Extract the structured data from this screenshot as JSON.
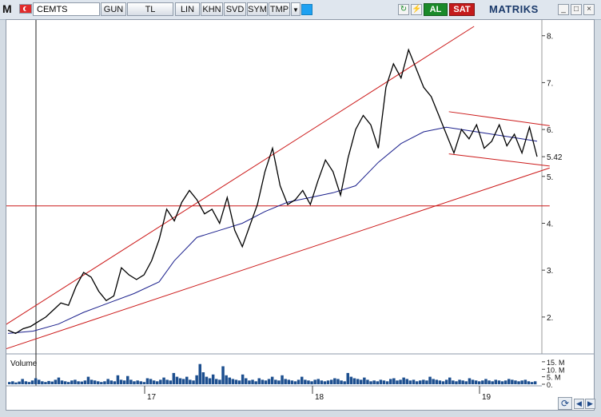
{
  "toolbar": {
    "logo": "M",
    "symbol": "CEMTS",
    "period": "GUN",
    "currency": "TL",
    "scale": "LIN",
    "buttons": [
      "KHN",
      "SVD",
      "SYM",
      "TMP"
    ],
    "buy_label": "AL",
    "sell_label": "SAT",
    "brand": "MATRIKS",
    "colors": {
      "buy": "#1a8a2a",
      "sell": "#c41b1b",
      "twitter": "#1da1f2"
    }
  },
  "chart_data": [
    {
      "type": "line",
      "title": "",
      "ylabel": "",
      "ylim": [
        1.35,
        8.2
      ],
      "yticks": [
        "8.",
        "7.",
        "6.",
        "5.",
        "4.",
        "3.",
        "2."
      ],
      "ytick_values": [
        8,
        7,
        6,
        5,
        4,
        3,
        2
      ],
      "xticks": [
        "17",
        "18",
        "19"
      ],
      "last_price_label": "5.42",
      "last_price": 5.42,
      "series": [
        {
          "values": [
            [
              0,
              1.72
            ],
            [
              3,
              1.65
            ],
            [
              6,
              1.75
            ],
            [
              9,
              1.8
            ],
            [
              12,
              1.9
            ],
            [
              15,
              2.0
            ],
            [
              18,
              2.15
            ],
            [
              21,
              2.3
            ],
            [
              24,
              2.25
            ],
            [
              27,
              2.65
            ],
            [
              30,
              2.95
            ],
            [
              33,
              2.85
            ],
            [
              36,
              2.55
            ],
            [
              39,
              2.35
            ],
            [
              42,
              2.45
            ],
            [
              45,
              3.05
            ],
            [
              48,
              2.9
            ],
            [
              51,
              2.8
            ],
            [
              54,
              2.9
            ],
            [
              57,
              3.2
            ],
            [
              60,
              3.65
            ],
            [
              63,
              4.3
            ],
            [
              66,
              4.05
            ],
            [
              69,
              4.45
            ],
            [
              72,
              4.7
            ],
            [
              75,
              4.5
            ],
            [
              78,
              4.2
            ],
            [
              81,
              4.3
            ],
            [
              84,
              4.0
            ],
            [
              87,
              4.55
            ],
            [
              90,
              3.85
            ],
            [
              93,
              3.5
            ],
            [
              96,
              3.95
            ],
            [
              99,
              4.4
            ],
            [
              102,
              5.1
            ],
            [
              105,
              5.6
            ],
            [
              108,
              4.8
            ],
            [
              111,
              4.4
            ],
            [
              114,
              4.5
            ],
            [
              117,
              4.7
            ],
            [
              120,
              4.4
            ],
            [
              123,
              4.9
            ],
            [
              126,
              5.35
            ],
            [
              129,
              5.1
            ],
            [
              132,
              4.6
            ],
            [
              135,
              5.4
            ],
            [
              138,
              6.0
            ],
            [
              141,
              6.3
            ],
            [
              144,
              6.1
            ],
            [
              147,
              5.6
            ],
            [
              150,
              6.9
            ],
            [
              153,
              7.4
            ],
            [
              156,
              7.1
            ],
            [
              159,
              7.7
            ],
            [
              162,
              7.3
            ],
            [
              165,
              6.9
            ],
            [
              168,
              6.7
            ],
            [
              171,
              6.3
            ],
            [
              174,
              5.9
            ],
            [
              177,
              5.5
            ],
            [
              180,
              6.0
            ],
            [
              183,
              5.8
            ],
            [
              186,
              6.1
            ],
            [
              189,
              5.6
            ],
            [
              192,
              5.75
            ],
            [
              195,
              6.1
            ],
            [
              198,
              5.65
            ],
            [
              201,
              5.9
            ],
            [
              204,
              5.5
            ],
            [
              207,
              6.05
            ],
            [
              210,
              5.42
            ]
          ]
        },
        {
          "values": [
            [
              0,
              1.65
            ],
            [
              10,
              1.7
            ],
            [
              20,
              1.85
            ],
            [
              30,
              2.1
            ],
            [
              40,
              2.3
            ],
            [
              50,
              2.5
            ],
            [
              60,
              2.75
            ],
            [
              66,
              3.2
            ],
            [
              75,
              3.7
            ],
            [
              84,
              3.85
            ],
            [
              93,
              4.0
            ],
            [
              102,
              4.25
            ],
            [
              111,
              4.45
            ],
            [
              120,
              4.55
            ],
            [
              129,
              4.65
            ],
            [
              138,
              4.8
            ],
            [
              147,
              5.3
            ],
            [
              156,
              5.7
            ],
            [
              165,
              5.95
            ],
            [
              174,
              6.05
            ],
            [
              186,
              5.95
            ],
            [
              198,
              5.85
            ],
            [
              210,
              5.75
            ]
          ]
        }
      ],
      "trendlines": [
        {
          "from": [
            -2,
            1.8
          ],
          "to": [
            185,
            8.2
          ]
        },
        {
          "from": [
            -2,
            1.3
          ],
          "to": [
            215,
            5.18
          ]
        },
        {
          "from": [
            -2,
            4.37
          ],
          "to": [
            215,
            4.37
          ]
        },
        {
          "from": [
            175,
            6.38
          ],
          "to": [
            215,
            6.08
          ]
        },
        {
          "from": [
            175,
            5.48
          ],
          "to": [
            215,
            5.22
          ]
        }
      ],
      "colors": {
        "price": "#000000",
        "average": "#1a1f8c",
        "trend": "#cc1a1a"
      }
    },
    {
      "type": "bar",
      "title": "Volume",
      "yticks": [
        "15. M",
        "10. M",
        "5. M",
        "0."
      ],
      "ytick_values": [
        15,
        10,
        5,
        0
      ],
      "ylim": [
        0,
        16
      ],
      "values": [
        1.5,
        2.0,
        1.2,
        1.8,
        3.5,
        2.0,
        1.5,
        2.5,
        4.0,
        3.0,
        2.0,
        1.5,
        2.2,
        1.8,
        3.0,
        4.5,
        2.5,
        2.0,
        1.5,
        2.5,
        3.0,
        2.0,
        1.8,
        2.5,
        5.0,
        3.0,
        2.5,
        2.0,
        1.5,
        2.0,
        3.5,
        2.5,
        2.0,
        6.0,
        3.0,
        2.5,
        5.5,
        3.0,
        2.0,
        2.5,
        2.0,
        1.5,
        4.0,
        3.5,
        2.5,
        2.0,
        3.0,
        4.5,
        3.0,
        2.5,
        7.5,
        5.0,
        4.0,
        3.5,
        5.0,
        3.0,
        2.5,
        6.0,
        13.5,
        8.0,
        5.0,
        4.0,
        6.5,
        3.5,
        3.0,
        12.0,
        6.0,
        4.5,
        3.5,
        3.0,
        2.5,
        6.5,
        4.0,
        2.5,
        3.0,
        2.0,
        4.0,
        3.0,
        2.5,
        3.5,
        5.0,
        3.0,
        2.5,
        6.0,
        3.5,
        3.0,
        2.5,
        2.0,
        3.0,
        5.0,
        3.0,
        2.5,
        2.0,
        3.0,
        3.5,
        2.5,
        2.0,
        2.5,
        3.0,
        4.0,
        3.5,
        2.5,
        2.0,
        7.5,
        5.0,
        4.0,
        3.5,
        3.0,
        4.5,
        3.0,
        2.0,
        2.5,
        2.0,
        3.0,
        2.5,
        2.0,
        3.5,
        4.0,
        2.5,
        3.0,
        4.5,
        3.5,
        2.5,
        3.0,
        2.0,
        2.5,
        3.0,
        2.5,
        5.0,
        3.5,
        3.0,
        2.5,
        2.0,
        3.0,
        4.5,
        2.5,
        2.0,
        3.0,
        2.5,
        2.0,
        4.0,
        3.0,
        2.5,
        2.0,
        2.5,
        3.5,
        2.5,
        2.0,
        3.0,
        2.5,
        2.0,
        2.5,
        3.5,
        3.0,
        2.5,
        2.0,
        2.5,
        3.0,
        2.0,
        1.5,
        2.0
      ],
      "color": "#1d4f8f"
    }
  ]
}
